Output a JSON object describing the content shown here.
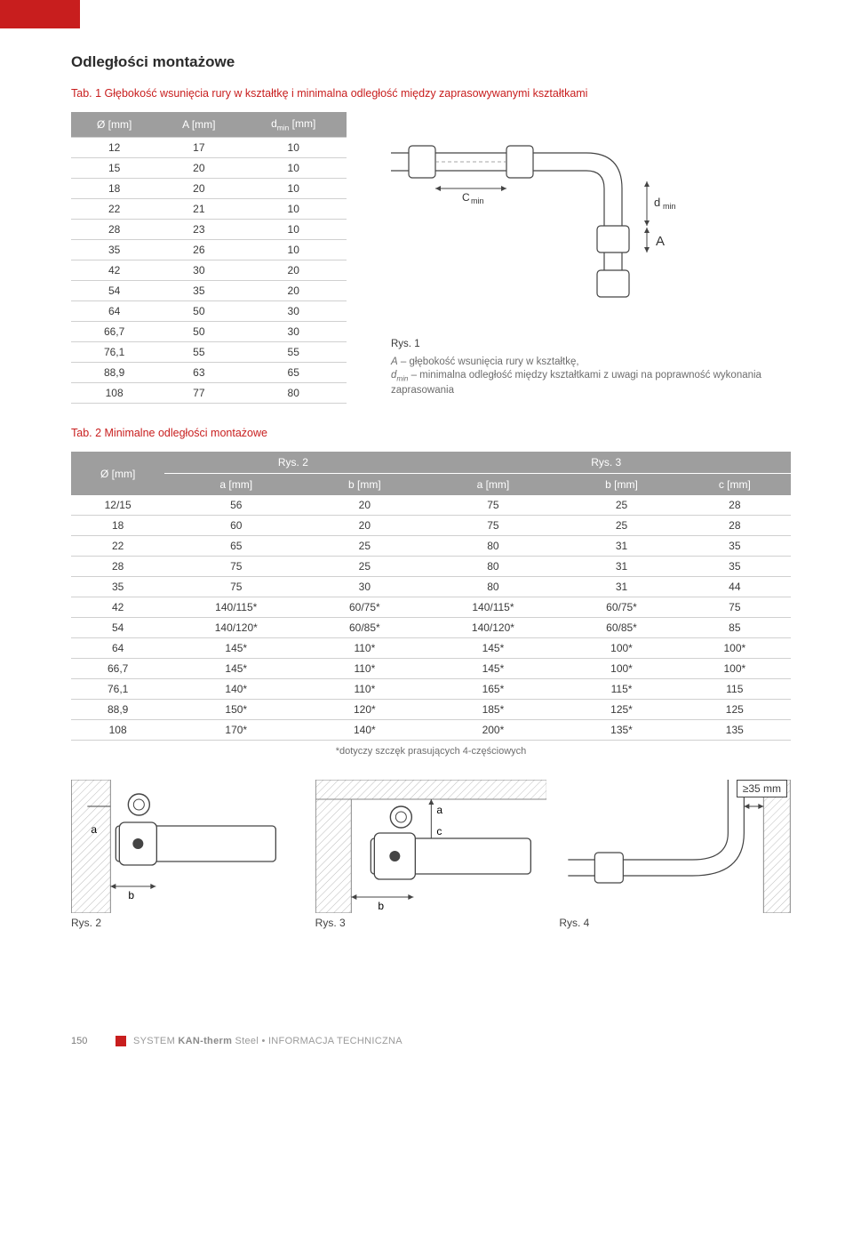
{
  "headings": {
    "title": "Odległości montażowe",
    "tab1_caption": "Tab. 1 Głębokość wsunięcia rury w kształtkę i minimalna odległość między zaprasowywanymi kształtkami",
    "tab2_caption": "Tab. 2 Minimalne odległości montażowe"
  },
  "table1": {
    "columns": [
      "Ø [mm]",
      "A [mm]",
      "dmin [mm]"
    ],
    "rows": [
      [
        "12",
        "17",
        "10"
      ],
      [
        "15",
        "20",
        "10"
      ],
      [
        "18",
        "20",
        "10"
      ],
      [
        "22",
        "21",
        "10"
      ],
      [
        "28",
        "23",
        "10"
      ],
      [
        "35",
        "26",
        "10"
      ],
      [
        "42",
        "30",
        "20"
      ],
      [
        "54",
        "35",
        "20"
      ],
      [
        "64",
        "50",
        "30"
      ],
      [
        "66,7",
        "50",
        "30"
      ],
      [
        "76,1",
        "55",
        "55"
      ],
      [
        "88,9",
        "63",
        "65"
      ],
      [
        "108",
        "77",
        "80"
      ]
    ]
  },
  "side": {
    "rys_label": "Rys. 1",
    "lineA_sym": "A",
    "lineA_txt": " – głębokość wsunięcia rury w kształtkę,",
    "lineD_sym": "dmin",
    "lineD_txt": " – minimalna odległość między kształtkami z uwagi na poprawność wykonania zaprasowania",
    "cmin_label": "C min",
    "dmin_label": "d min",
    "A_label": "A"
  },
  "table2": {
    "header": {
      "col0": "Ø [mm]",
      "group1": "Rys. 2",
      "group2": "Rys. 3",
      "sub": [
        "a [mm]",
        "b [mm]",
        "a [mm]",
        "b [mm]",
        "c [mm]"
      ]
    },
    "rows": [
      [
        "12/15",
        "56",
        "20",
        "75",
        "25",
        "28"
      ],
      [
        "18",
        "60",
        "20",
        "75",
        "25",
        "28"
      ],
      [
        "22",
        "65",
        "25",
        "80",
        "31",
        "35"
      ],
      [
        "28",
        "75",
        "25",
        "80",
        "31",
        "35"
      ],
      [
        "35",
        "75",
        "30",
        "80",
        "31",
        "44"
      ],
      [
        "42",
        "140/115*",
        "60/75*",
        "140/115*",
        "60/75*",
        "75"
      ],
      [
        "54",
        "140/120*",
        "60/85*",
        "140/120*",
        "60/85*",
        "85"
      ],
      [
        "64",
        "145*",
        "110*",
        "145*",
        "100*",
        "100*"
      ],
      [
        "66,7",
        "145*",
        "110*",
        "145*",
        "100*",
        "100*"
      ],
      [
        "76,1",
        "140*",
        "110*",
        "165*",
        "115*",
        "115"
      ],
      [
        "88,9",
        "150*",
        "120*",
        "185*",
        "125*",
        "125"
      ],
      [
        "108",
        "170*",
        "140*",
        "200*",
        "135*",
        "135"
      ]
    ],
    "footnote": "*dotyczy szczęk prasujących 4-częściowych"
  },
  "bottom": {
    "badge": "≥35 mm",
    "rys2": "Rys. 2",
    "rys3": "Rys. 3",
    "rys4": "Rys. 4",
    "label_a": "a",
    "label_b": "b",
    "label_c": "c"
  },
  "footer": {
    "page": "150",
    "text_prefix": "SYSTEM ",
    "text_bold": "KAN-therm",
    "text_suffix": " Steel • INFORMACJA TECHNICZNA"
  },
  "colors": {
    "accent": "#c81e1e",
    "header_bg": "#9e9e9e",
    "rule": "#d0d0d0",
    "diagram_stroke": "#444444",
    "hatch": "#bdbdbd"
  }
}
